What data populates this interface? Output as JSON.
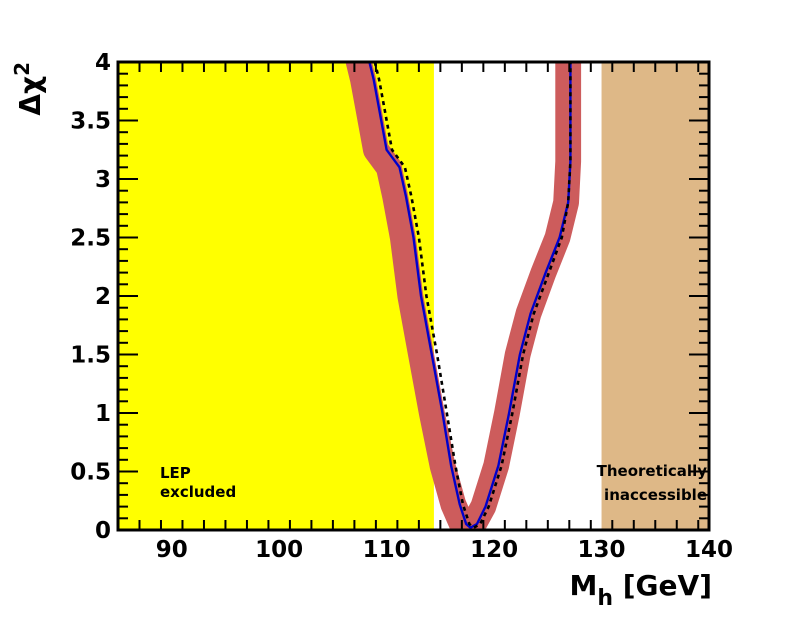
{
  "chart_data": {
    "type": "line",
    "title": "",
    "xlabel": "M",
    "xlabel_subscript": "h",
    "xlabel_unit": "[GeV]",
    "ylabel": "Δχ",
    "ylabel_superscript": "2",
    "xlim": [
      85,
      140
    ],
    "ylim": [
      0,
      4
    ],
    "x_ticks": [
      90,
      100,
      110,
      120,
      130,
      140
    ],
    "x_tick_labels": [
      "90",
      "100",
      "110",
      "120",
      "130",
      "140"
    ],
    "y_ticks": [
      0,
      0.5,
      1,
      1.5,
      2,
      2.5,
      3,
      3.5,
      4
    ],
    "y_tick_labels": [
      "0",
      "0.5",
      "1",
      "1.5",
      "2",
      "2.5",
      "3",
      "3.5",
      "4"
    ],
    "grid": false,
    "regions": [
      {
        "name": "lep-excluded",
        "x0": 85,
        "x1": 114.4,
        "color": "#ffff00",
        "label": [
          "LEP",
          "excluded"
        ]
      },
      {
        "name": "theoretically-inaccessible",
        "x0": 130,
        "x1": 140,
        "color": "#deb887",
        "label": [
          "Theoretically",
          "inaccessible"
        ]
      }
    ],
    "series": [
      {
        "name": "band",
        "style": "band",
        "color": "#cd5c5c",
        "width_gev": 2.4,
        "x": [
          107.4,
          107.8,
          108.3,
          109.0,
          110.2,
          110.8,
          111.5,
          112.2,
          113.2,
          114.2,
          115.2,
          116.2,
          117.0,
          117.5,
          118.1,
          119.0,
          120.2,
          121.2,
          122.2,
          123.2,
          124.6,
          125.9,
          126.7,
          126.9,
          126.9
        ],
        "y": [
          4.0,
          3.85,
          3.6,
          3.25,
          3.1,
          2.85,
          2.5,
          2.0,
          1.5,
          1.0,
          0.55,
          0.22,
          0.05,
          0.02,
          0.05,
          0.2,
          0.55,
          1.0,
          1.5,
          1.85,
          2.2,
          2.5,
          2.8,
          3.15,
          4.0
        ]
      },
      {
        "name": "central",
        "style": "solid",
        "color": "#0000cc",
        "x": [
          108.4,
          108.8,
          109.3,
          110.0,
          111.2,
          111.8,
          112.5,
          113.2,
          114.2,
          115.2,
          116.0,
          116.8,
          117.4,
          117.8,
          118.4,
          119.2,
          120.4,
          121.4,
          122.4,
          123.4,
          124.8,
          126.1,
          126.9,
          127.1,
          127.1
        ],
        "y": [
          4.0,
          3.85,
          3.6,
          3.25,
          3.1,
          2.85,
          2.5,
          2.0,
          1.5,
          1.0,
          0.55,
          0.22,
          0.05,
          0.02,
          0.05,
          0.2,
          0.55,
          1.0,
          1.5,
          1.85,
          2.2,
          2.5,
          2.8,
          3.15,
          4.0
        ]
      },
      {
        "name": "alternative",
        "style": "dashed",
        "color": "#000000",
        "x": [
          108.9,
          109.3,
          109.8,
          110.5,
          111.7,
          112.3,
          113.0,
          113.7,
          114.7,
          115.6,
          116.4,
          117.1,
          117.7,
          118.1,
          118.7,
          119.5,
          120.7,
          121.7,
          122.7,
          123.7,
          125.1,
          126.3,
          126.9,
          127.1,
          127.1
        ],
        "y": [
          4.0,
          3.85,
          3.6,
          3.25,
          3.1,
          2.85,
          2.5,
          2.0,
          1.5,
          1.0,
          0.55,
          0.22,
          0.05,
          0.02,
          0.05,
          0.2,
          0.55,
          1.0,
          1.5,
          1.85,
          2.2,
          2.5,
          2.8,
          3.15,
          4.0
        ]
      }
    ]
  }
}
